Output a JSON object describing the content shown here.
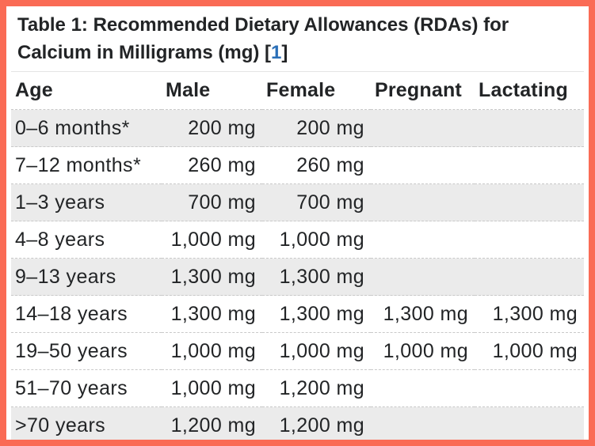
{
  "colors": {
    "accent_border": "#fa6b55",
    "text": "#222426",
    "row_stripe": "#ebebeb",
    "row_separator_dash": "#c9c9c9",
    "caption_divider": "#e4e4e4",
    "reference_link_blue": "#2a6fb8"
  },
  "caption": {
    "text": "Table 1: Recommended Dietary Allowances (RDAs) for Calcium in Milligrams (mg) ",
    "ref_open": "[",
    "ref_number": "1",
    "ref_close": "]"
  },
  "table": {
    "columns": [
      "Age",
      "Male",
      "Female",
      "Pregnant",
      "Lactating"
    ],
    "cell_names": [
      "age-cell",
      "male-cell",
      "female-cell",
      "pregnant-cell",
      "lactating-cell"
    ],
    "rows": [
      {
        "shaded": true,
        "cells": [
          "0–6 months*",
          "200 mg",
          "200 mg",
          "",
          ""
        ]
      },
      {
        "shaded": false,
        "cells": [
          "7–12 months*",
          "260 mg",
          "260 mg",
          "",
          ""
        ]
      },
      {
        "shaded": true,
        "cells": [
          "1–3 years",
          "700 mg",
          "700 mg",
          "",
          ""
        ]
      },
      {
        "shaded": false,
        "cells": [
          "4–8 years",
          "1,000 mg",
          "1,000 mg",
          "",
          ""
        ]
      },
      {
        "shaded": true,
        "cells": [
          "9–13 years",
          "1,300 mg",
          "1,300 mg",
          "",
          ""
        ]
      },
      {
        "shaded": false,
        "cells": [
          "14–18 years",
          "1,300 mg",
          "1,300 mg",
          "1,300 mg",
          "1,300 mg"
        ]
      },
      {
        "shaded": false,
        "cells": [
          "19–50 years",
          "1,000 mg",
          "1,000 mg",
          "1,000 mg",
          "1,000 mg"
        ]
      },
      {
        "shaded": false,
        "cells": [
          "51–70 years",
          "1,000 mg",
          "1,200 mg",
          "",
          ""
        ]
      },
      {
        "shaded": true,
        "cells": [
          ">70 years",
          "1,200 mg",
          "1,200 mg",
          "",
          ""
        ]
      }
    ]
  }
}
